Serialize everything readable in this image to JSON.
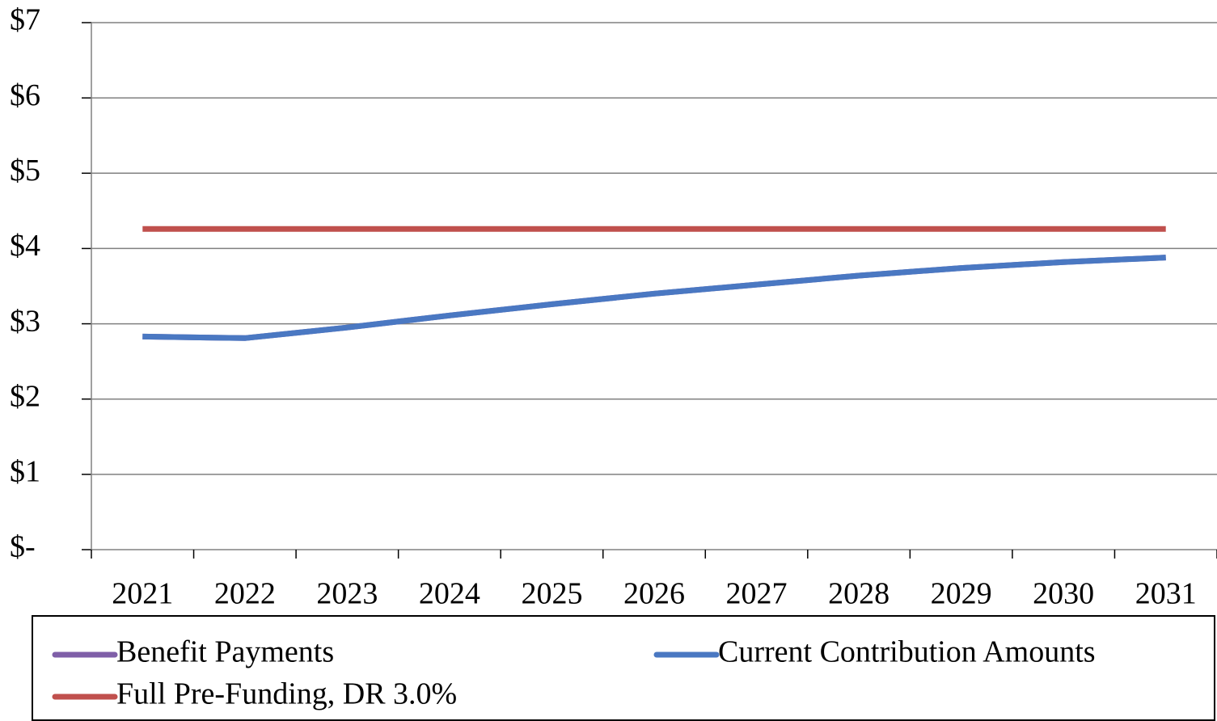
{
  "chart_data": {
    "type": "line",
    "categories": [
      "2021",
      "2022",
      "2023",
      "2024",
      "2025",
      "2026",
      "2027",
      "2028",
      "2029",
      "2030",
      "2031"
    ],
    "series": [
      {
        "name": "Benefit Payments",
        "color": "#7f5fa8",
        "values": [
          2.83,
          2.81,
          2.95,
          3.11,
          3.26,
          3.4,
          3.52,
          3.64,
          3.74,
          3.82,
          3.88
        ]
      },
      {
        "name": "Current Contribution Amounts",
        "color": "#4a78c2",
        "values": [
          2.83,
          2.81,
          2.95,
          3.11,
          3.26,
          3.4,
          3.52,
          3.64,
          3.74,
          3.82,
          3.88
        ]
      },
      {
        "name": "Full Pre-Funding, DR 3.0%",
        "color": "#c0504d",
        "values": [
          4.26,
          4.26,
          4.26,
          4.26,
          4.26,
          4.26,
          4.26,
          4.26,
          4.26,
          4.26,
          4.26
        ]
      }
    ],
    "ylim": [
      0,
      7
    ],
    "yticks": [
      {
        "value": 0,
        "label": "$-"
      },
      {
        "value": 1,
        "label": "$1"
      },
      {
        "value": 2,
        "label": "$2"
      },
      {
        "value": 3,
        "label": "$3"
      },
      {
        "value": 4,
        "label": "$4"
      },
      {
        "value": 5,
        "label": "$5"
      },
      {
        "value": 6,
        "label": "$6"
      },
      {
        "value": 7,
        "label": "$7"
      }
    ],
    "grid": true
  }
}
